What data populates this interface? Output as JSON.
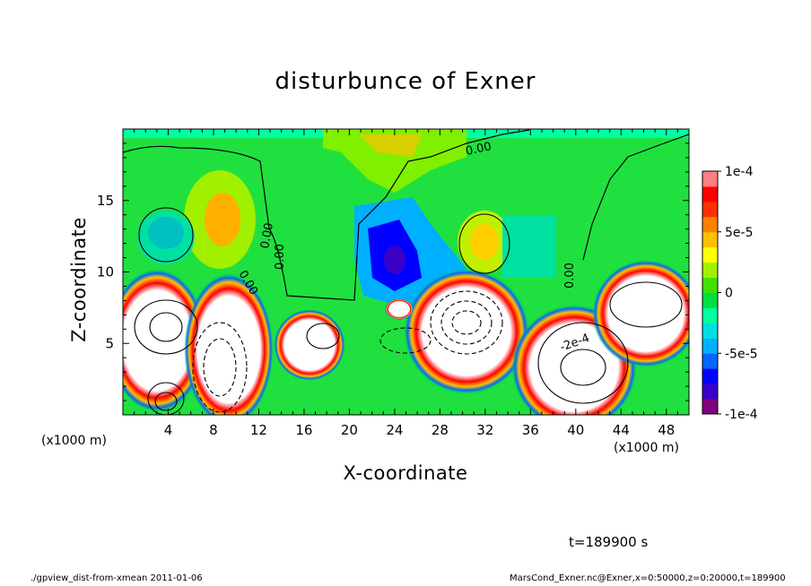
{
  "chart_data": {
    "type": "heatmap",
    "title": "disturbunce of Exner",
    "xlabel": "X-coordinate",
    "ylabel": "Z-coordinate",
    "x_unit_label_left": "(x1000 m)",
    "x_unit_label_right": "(x1000 m)",
    "xlim": [
      0,
      50
    ],
    "ylim": [
      0,
      20
    ],
    "x_ticks": [
      4,
      8,
      12,
      16,
      20,
      24,
      28,
      32,
      36,
      40,
      44,
      48
    ],
    "y_ticks": [
      5,
      10,
      15
    ],
    "colorbar": {
      "range": [
        -0.0001,
        0.0001
      ],
      "tick_labels": [
        "1e-4",
        "5e-5",
        "0",
        "-5e-5",
        "-1e-4"
      ],
      "tick_values": [
        0.0001,
        5e-05,
        0,
        -5e-05,
        -0.0001
      ],
      "colors": [
        "#800080",
        "#3b00c8",
        "#0000ff",
        "#0066ff",
        "#00b0ff",
        "#00e0e0",
        "#00ffa0",
        "#00e040",
        "#40e000",
        "#a0f000",
        "#ffff00",
        "#ffc000",
        "#ff8000",
        "#ff3000",
        "#ff0000",
        "#ff8080"
      ]
    },
    "contour_labels": [
      "0.00",
      "0.00",
      "0.00",
      "0.00",
      "0.00",
      "-2e-4"
    ],
    "time_label": "t=189900 s"
  },
  "footer": {
    "left": "./gpview_dist-from-xmean  2011-01-06",
    "right": "MarsCond_Exner.nc@Exner,x=0:50000,z=0:20000,t=189900"
  }
}
